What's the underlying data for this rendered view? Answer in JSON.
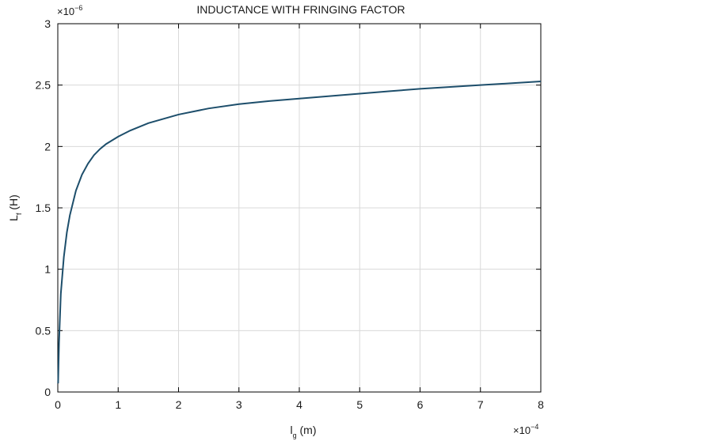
{
  "chart_data": {
    "type": "line",
    "title": "INDUCTANCE WITH FRINGING FACTOR",
    "xlabel_main": "l",
    "xlabel_sub": "g",
    "xlabel_unit": " (m)",
    "ylabel_main": "L",
    "ylabel_sub": "f",
    "ylabel_unit": " (H)",
    "x_multiplier": "×10",
    "x_exponent": "−4",
    "y_multiplier": "×10",
    "y_exponent": "−6",
    "xlim": [
      0,
      8
    ],
    "ylim": [
      0,
      3
    ],
    "x_ticks": [
      "0",
      "1",
      "2",
      "3",
      "4",
      "5",
      "6",
      "7",
      "8"
    ],
    "y_ticks": [
      "0",
      "0.5",
      "1",
      "1.5",
      "2",
      "2.5",
      "3"
    ],
    "grid": true,
    "colors": {
      "line": "#1d4e6b",
      "grid": "#d9d9d9",
      "axis": "#000000"
    },
    "series": [
      {
        "x": [
          0.005,
          0.02,
          0.05,
          0.1,
          0.15,
          0.2,
          0.3,
          0.4,
          0.5,
          0.6,
          0.7,
          0.8,
          1.0,
          1.2,
          1.5,
          2.0,
          2.5,
          3.0,
          3.5,
          4.0,
          4.5,
          5.0,
          5.5,
          6.0,
          6.5,
          7.0,
          7.5,
          8.0
        ],
        "y": [
          0.07,
          0.4,
          0.8,
          1.1,
          1.3,
          1.44,
          1.64,
          1.77,
          1.86,
          1.93,
          1.98,
          2.02,
          2.08,
          2.13,
          2.19,
          2.26,
          2.31,
          2.345,
          2.37,
          2.39,
          2.41,
          2.43,
          2.45,
          2.47,
          2.485,
          2.5,
          2.515,
          2.53
        ]
      }
    ]
  }
}
